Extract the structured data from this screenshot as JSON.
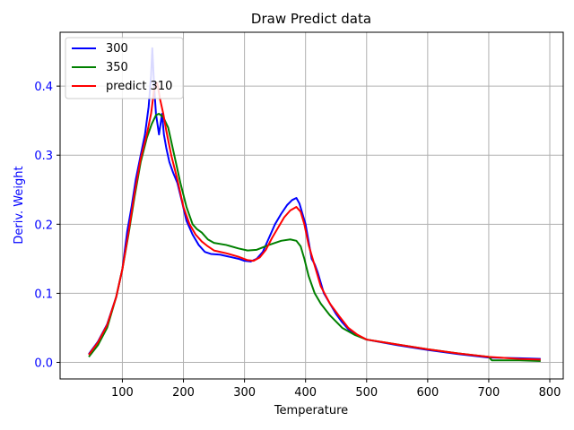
{
  "chart_data": {
    "type": "line",
    "title": "Draw Predict data",
    "xlabel": "Temperature",
    "ylabel": "Deriv. Weight",
    "xlim": [
      -2,
      822
    ],
    "ylim": [
      -0.024,
      0.478
    ],
    "xticks": [
      100,
      200,
      300,
      400,
      500,
      600,
      700,
      800
    ],
    "yticks": [
      0.0,
      0.1,
      0.2,
      0.3,
      0.4
    ],
    "xtick_labels": [
      "100",
      "200",
      "300",
      "400",
      "500",
      "600",
      "700",
      "800"
    ],
    "ytick_labels": [
      "0.0",
      "0.1",
      "0.2",
      "0.3",
      "0.4"
    ],
    "grid": true,
    "legend_position": "top-left",
    "series": [
      {
        "name": "300",
        "color": "#0000ff",
        "points": [
          [
            45,
            0.012
          ],
          [
            60,
            0.03
          ],
          [
            75,
            0.055
          ],
          [
            90,
            0.095
          ],
          [
            100,
            0.135
          ],
          [
            108,
            0.19
          ],
          [
            115,
            0.225
          ],
          [
            122,
            0.265
          ],
          [
            130,
            0.3
          ],
          [
            137,
            0.33
          ],
          [
            143,
            0.37
          ],
          [
            147,
            0.415
          ],
          [
            149,
            0.455
          ],
          [
            152,
            0.4
          ],
          [
            155,
            0.36
          ],
          [
            160,
            0.33
          ],
          [
            165,
            0.36
          ],
          [
            168,
            0.33
          ],
          [
            172,
            0.31
          ],
          [
            177,
            0.29
          ],
          [
            183,
            0.275
          ],
          [
            190,
            0.26
          ],
          [
            197,
            0.235
          ],
          [
            205,
            0.205
          ],
          [
            215,
            0.185
          ],
          [
            225,
            0.17
          ],
          [
            235,
            0.16
          ],
          [
            245,
            0.157
          ],
          [
            260,
            0.156
          ],
          [
            275,
            0.153
          ],
          [
            290,
            0.15
          ],
          [
            300,
            0.147
          ],
          [
            310,
            0.146
          ],
          [
            320,
            0.15
          ],
          [
            330,
            0.16
          ],
          [
            340,
            0.18
          ],
          [
            350,
            0.2
          ],
          [
            360,
            0.215
          ],
          [
            370,
            0.228
          ],
          [
            378,
            0.235
          ],
          [
            385,
            0.238
          ],
          [
            390,
            0.23
          ],
          [
            395,
            0.215
          ],
          [
            400,
            0.2
          ],
          [
            405,
            0.175
          ],
          [
            410,
            0.15
          ],
          [
            415,
            0.142
          ],
          [
            420,
            0.13
          ],
          [
            430,
            0.1
          ],
          [
            440,
            0.085
          ],
          [
            450,
            0.07
          ],
          [
            460,
            0.058
          ],
          [
            470,
            0.048
          ],
          [
            480,
            0.041
          ],
          [
            500,
            0.033
          ],
          [
            550,
            0.025
          ],
          [
            600,
            0.018
          ],
          [
            650,
            0.012
          ],
          [
            700,
            0.007
          ],
          [
            750,
            0.006
          ],
          [
            785,
            0.005
          ]
        ]
      },
      {
        "name": "350",
        "color": "#008000",
        "points": [
          [
            45,
            0.008
          ],
          [
            60,
            0.025
          ],
          [
            75,
            0.05
          ],
          [
            90,
            0.095
          ],
          [
            100,
            0.135
          ],
          [
            110,
            0.185
          ],
          [
            120,
            0.24
          ],
          [
            130,
            0.29
          ],
          [
            140,
            0.325
          ],
          [
            148,
            0.345
          ],
          [
            155,
            0.358
          ],
          [
            160,
            0.36
          ],
          [
            167,
            0.355
          ],
          [
            175,
            0.34
          ],
          [
            185,
            0.3
          ],
          [
            195,
            0.26
          ],
          [
            205,
            0.225
          ],
          [
            215,
            0.2
          ],
          [
            222,
            0.193
          ],
          [
            230,
            0.188
          ],
          [
            240,
            0.178
          ],
          [
            250,
            0.173
          ],
          [
            270,
            0.17
          ],
          [
            290,
            0.165
          ],
          [
            305,
            0.162
          ],
          [
            320,
            0.163
          ],
          [
            340,
            0.17
          ],
          [
            360,
            0.176
          ],
          [
            375,
            0.178
          ],
          [
            385,
            0.176
          ],
          [
            392,
            0.168
          ],
          [
            398,
            0.15
          ],
          [
            405,
            0.125
          ],
          [
            415,
            0.1
          ],
          [
            425,
            0.085
          ],
          [
            440,
            0.068
          ],
          [
            460,
            0.05
          ],
          [
            480,
            0.04
          ],
          [
            500,
            0.033
          ],
          [
            550,
            0.026
          ],
          [
            600,
            0.019
          ],
          [
            650,
            0.013
          ],
          [
            700,
            0.008
          ],
          [
            705,
            0.003
          ],
          [
            720,
            0.003
          ],
          [
            750,
            0.003
          ],
          [
            785,
            0.002
          ]
        ]
      },
      {
        "name": "predict 310",
        "color": "#ff0000",
        "points": [
          [
            45,
            0.011
          ],
          [
            60,
            0.029
          ],
          [
            75,
            0.054
          ],
          [
            90,
            0.095
          ],
          [
            100,
            0.135
          ],
          [
            110,
            0.188
          ],
          [
            120,
            0.245
          ],
          [
            130,
            0.295
          ],
          [
            140,
            0.33
          ],
          [
            147,
            0.36
          ],
          [
            152,
            0.395
          ],
          [
            157,
            0.405
          ],
          [
            162,
            0.38
          ],
          [
            167,
            0.36
          ],
          [
            172,
            0.335
          ],
          [
            180,
            0.3
          ],
          [
            190,
            0.265
          ],
          [
            200,
            0.225
          ],
          [
            210,
            0.2
          ],
          [
            220,
            0.185
          ],
          [
            230,
            0.175
          ],
          [
            240,
            0.168
          ],
          [
            250,
            0.162
          ],
          [
            270,
            0.158
          ],
          [
            290,
            0.153
          ],
          [
            305,
            0.148
          ],
          [
            315,
            0.147
          ],
          [
            325,
            0.152
          ],
          [
            335,
            0.163
          ],
          [
            345,
            0.18
          ],
          [
            355,
            0.195
          ],
          [
            365,
            0.21
          ],
          [
            375,
            0.22
          ],
          [
            385,
            0.225
          ],
          [
            392,
            0.218
          ],
          [
            398,
            0.2
          ],
          [
            405,
            0.17
          ],
          [
            415,
            0.14
          ],
          [
            425,
            0.11
          ],
          [
            440,
            0.085
          ],
          [
            455,
            0.067
          ],
          [
            470,
            0.05
          ],
          [
            485,
            0.04
          ],
          [
            500,
            0.033
          ],
          [
            550,
            0.026
          ],
          [
            600,
            0.019
          ],
          [
            650,
            0.013
          ],
          [
            700,
            0.008
          ],
          [
            750,
            0.005
          ],
          [
            785,
            0.004
          ]
        ]
      }
    ]
  }
}
